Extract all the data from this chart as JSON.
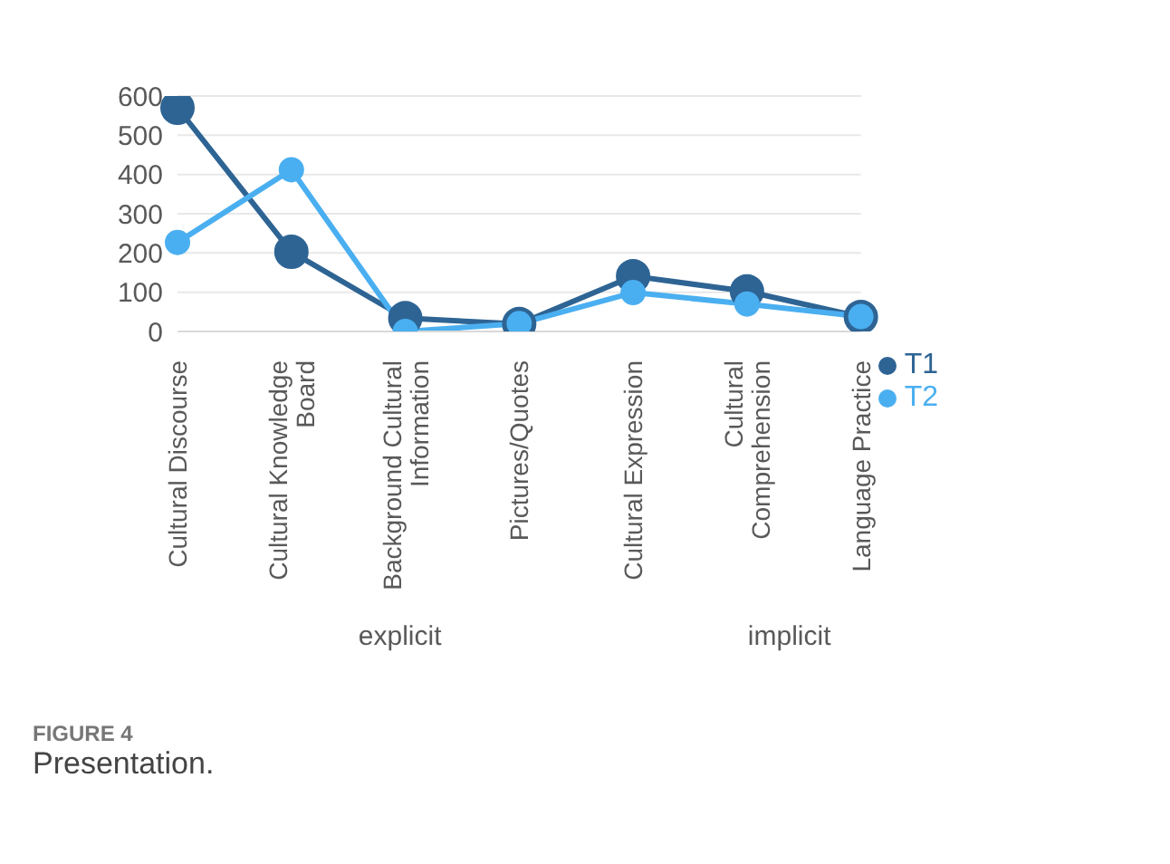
{
  "chart_data": {
    "type": "line",
    "title": "Presentation.",
    "categories": [
      "Cultural Discourse",
      "Cultural Knowledge Board",
      "Background Cultural Information",
      "Pictures/Quotes",
      "Cultural Expression",
      "Cultural Comprehension",
      "Language Practice"
    ],
    "series": [
      {
        "name": "T1",
        "color": "#2e6494",
        "values": [
          570,
          203,
          34,
          19,
          141,
          102,
          37
        ]
      },
      {
        "name": "T2",
        "color": "#4aaff0",
        "values": [
          227,
          412,
          0,
          20,
          99,
          70,
          38
        ]
      }
    ],
    "ylim": [
      0,
      600
    ],
    "yticks": [
      0,
      100,
      200,
      300,
      400,
      500,
      600
    ],
    "grid": "y",
    "legend": "right",
    "marker": "circle",
    "annotations": [
      "explicit",
      "implicit",
      "FIGURE 4"
    ]
  }
}
